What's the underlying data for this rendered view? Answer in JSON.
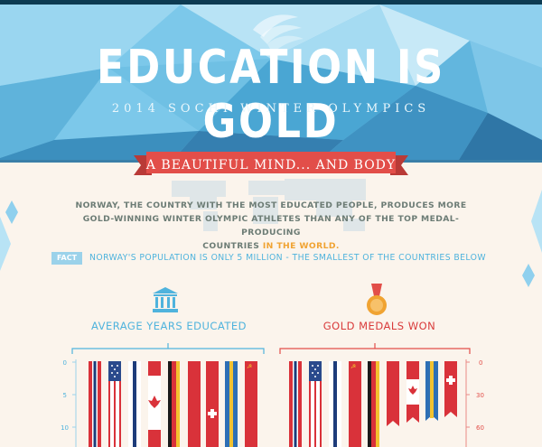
{
  "hero": {
    "title": "EDUCATION IS GOLD",
    "subtitle": "2014 SOCHI WINTER OLYMPICS"
  },
  "ribbon": {
    "text": "A BEAUTIFUL MIND... AND BODY"
  },
  "intro": {
    "line1": "NORWAY, THE COUNTRY WITH THE MOST EDUCATED PEOPLE, PRODUCES MORE",
    "line2": "GOLD-WINNING WINTER OLYMPIC ATHLETES THAN ANY OF THE TOP MEDAL-PRODUCING",
    "line3_before": "COUNTRIES ",
    "line3_highlight": "IN THE WORLD."
  },
  "fact": {
    "tag": "FACT",
    "text": "NORWAY'S POPULATION IS ONLY 5 MILLION - THE SMALLEST OF THE  COUNTRIES BELOW"
  },
  "education_chart": {
    "caption": "AVERAGE YEARS EDUCATED",
    "icon": "institution-icon",
    "ticks": [
      "0",
      "5",
      "10"
    ],
    "flags": [
      "norway",
      "usa",
      "finland",
      "canada",
      "germany",
      "switzerland",
      "sweden",
      "russia"
    ]
  },
  "medals_chart": {
    "caption": "GOLD MEDALS WON",
    "icon": "medal-icon",
    "ticks": [
      "0",
      "30",
      "60"
    ],
    "flags": [
      "norway",
      "usa",
      "finland",
      "russia",
      "germany",
      "canada",
      "sweden",
      "switzerland"
    ]
  },
  "colors": {
    "ribbon_red": "#e24e49",
    "sky_blue": "#4fb3dd",
    "gold": "#f0a332",
    "background": "#fbf4ec"
  }
}
